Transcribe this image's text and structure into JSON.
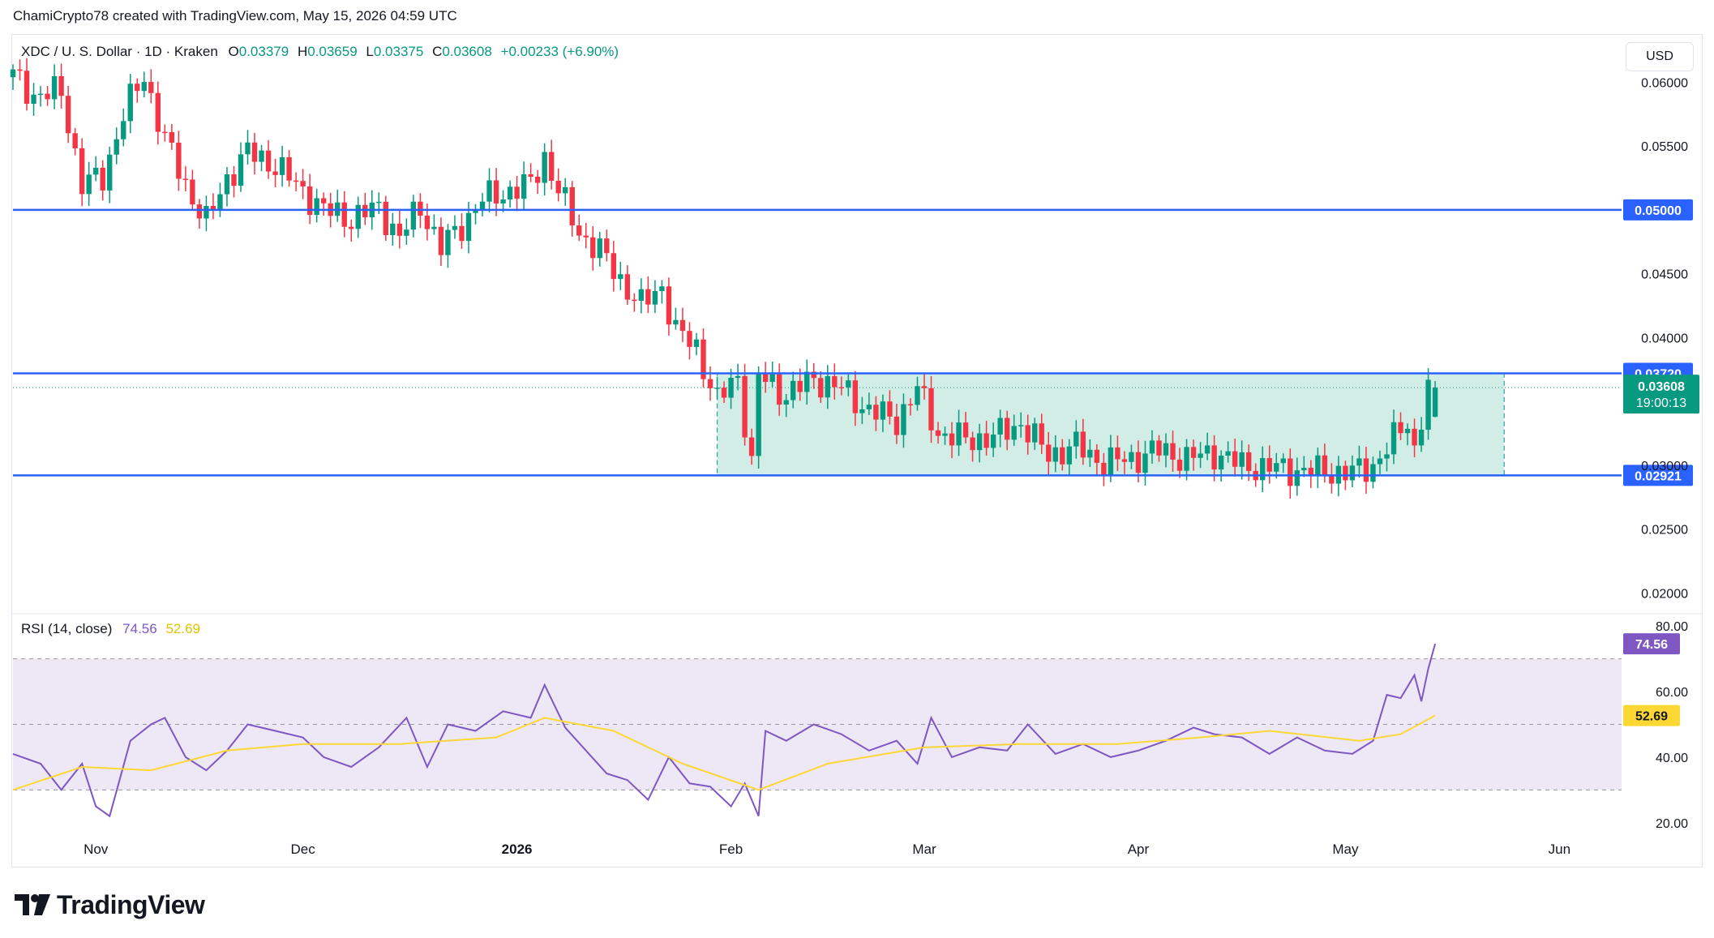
{
  "header": {
    "attribution": "ChamiCrypto78 created with TradingView.com, May 15, 2026 04:59 UTC"
  },
  "legend": {
    "symbol": "XDC / U. S. Dollar · 1D · Kraken",
    "o_label": "O",
    "o_value": "0.03379",
    "h_label": "H",
    "h_value": "0.03659",
    "l_label": "L",
    "l_value": "0.03375",
    "c_label": "C",
    "c_value": "0.03608",
    "change": "+0.00233 (+6.90%)"
  },
  "currency_button": "USD",
  "rsi_legend": {
    "label": "RSI (14, close)",
    "rsi_value": "74.56",
    "ma_value": "52.69"
  },
  "brand": {
    "name": "TradingView"
  },
  "colors": {
    "up": "#089981",
    "down": "#f23645",
    "level_line": "#2962ff",
    "range_fill": "#d2ede6",
    "rsi_line": "#7e57c2",
    "rsi_ma": "#fdd835",
    "rsi_band": "#ede7f6"
  },
  "chart_data": [
    {
      "type": "candlestick",
      "title": "XDC / U. S. Dollar · 1D · Kraken",
      "x_range": [
        "2025-10-20",
        "2026-06-10"
      ],
      "ylim": [
        0.0185,
        0.0625
      ],
      "y_ticks": [
        "0.06000",
        "0.05500",
        "0.04500",
        "0.04000",
        "0.03000",
        "0.02500",
        "0.02000"
      ],
      "x_ticks": [
        {
          "date": "2025-11-01",
          "label": "Nov"
        },
        {
          "date": "2025-12-01",
          "label": "Dec"
        },
        {
          "date": "2026-01-01",
          "label": "2026"
        },
        {
          "date": "2026-02-01",
          "label": "Feb"
        },
        {
          "date": "2026-03-01",
          "label": "Mar"
        },
        {
          "date": "2026-04-01",
          "label": "Apr"
        },
        {
          "date": "2026-05-01",
          "label": "May"
        },
        {
          "date": "2026-06-01",
          "label": "Jun"
        }
      ],
      "horizontal_levels": [
        {
          "value": 0.05,
          "label": "0.05000"
        },
        {
          "value": 0.0372,
          "label": "0.03720"
        },
        {
          "value": 0.02921,
          "label": "0.02921"
        }
      ],
      "range_box": {
        "start": "2026-01-30",
        "end": "2026-05-24",
        "top": 0.0372,
        "bottom": 0.02921
      },
      "last_price": {
        "value": 0.03608,
        "label": "0.03608",
        "countdown": "19:00:13"
      },
      "closes": [
        {
          "date": "2025-10-20",
          "close": 0.061
        },
        {
          "date": "2025-10-24",
          "close": 0.059
        },
        {
          "date": "2025-10-28",
          "close": 0.0592
        },
        {
          "date": "2025-10-31",
          "close": 0.052
        },
        {
          "date": "2025-11-03",
          "close": 0.0525
        },
        {
          "date": "2025-11-06",
          "close": 0.0575
        },
        {
          "date": "2025-11-09",
          "close": 0.0605
        },
        {
          "date": "2025-11-12",
          "close": 0.0555
        },
        {
          "date": "2025-11-15",
          "close": 0.052
        },
        {
          "date": "2025-11-18",
          "close": 0.049
        },
        {
          "date": "2025-11-21",
          "close": 0.0525
        },
        {
          "date": "2025-11-24",
          "close": 0.0545
        },
        {
          "date": "2025-11-28",
          "close": 0.0535
        },
        {
          "date": "2025-12-02",
          "close": 0.0515
        },
        {
          "date": "2025-12-05",
          "close": 0.05
        },
        {
          "date": "2025-12-09",
          "close": 0.0493
        },
        {
          "date": "2025-12-13",
          "close": 0.0502
        },
        {
          "date": "2025-12-16",
          "close": 0.0478
        },
        {
          "date": "2025-12-19",
          "close": 0.0503
        },
        {
          "date": "2025-12-22",
          "close": 0.047
        },
        {
          "date": "2025-12-25",
          "close": 0.0488
        },
        {
          "date": "2025-12-28",
          "close": 0.0508
        },
        {
          "date": "2026-01-01",
          "close": 0.0515
        },
        {
          "date": "2026-01-04",
          "close": 0.052
        },
        {
          "date": "2026-01-06",
          "close": 0.0542
        },
        {
          "date": "2026-01-08",
          "close": 0.0515
        },
        {
          "date": "2026-01-11",
          "close": 0.0482
        },
        {
          "date": "2026-01-14",
          "close": 0.0468
        },
        {
          "date": "2026-01-17",
          "close": 0.0445
        },
        {
          "date": "2026-01-20",
          "close": 0.0425
        },
        {
          "date": "2026-01-23",
          "close": 0.044
        },
        {
          "date": "2026-01-25",
          "close": 0.0405
        },
        {
          "date": "2026-01-28",
          "close": 0.0392
        },
        {
          "date": "2026-01-31",
          "close": 0.035
        },
        {
          "date": "2026-02-03",
          "close": 0.037
        },
        {
          "date": "2026-02-05",
          "close": 0.03
        },
        {
          "date": "2026-02-06",
          "close": 0.037
        },
        {
          "date": "2026-02-10",
          "close": 0.0355
        },
        {
          "date": "2026-02-14",
          "close": 0.0368
        },
        {
          "date": "2026-02-18",
          "close": 0.036
        },
        {
          "date": "2026-02-22",
          "close": 0.0343
        },
        {
          "date": "2026-02-26",
          "close": 0.0335
        },
        {
          "date": "2026-03-01",
          "close": 0.036
        },
        {
          "date": "2026-03-04",
          "close": 0.0325
        },
        {
          "date": "2026-03-08",
          "close": 0.032
        },
        {
          "date": "2026-03-12",
          "close": 0.0322
        },
        {
          "date": "2026-03-16",
          "close": 0.0333
        },
        {
          "date": "2026-03-20",
          "close": 0.0308
        },
        {
          "date": "2026-03-24",
          "close": 0.0315
        },
        {
          "date": "2026-03-28",
          "close": 0.0302
        },
        {
          "date": "2026-04-01",
          "close": 0.0305
        },
        {
          "date": "2026-04-05",
          "close": 0.0312
        },
        {
          "date": "2026-04-09",
          "close": 0.0305
        },
        {
          "date": "2026-04-13",
          "close": 0.031
        },
        {
          "date": "2026-04-17",
          "close": 0.03
        },
        {
          "date": "2026-04-21",
          "close": 0.0298
        },
        {
          "date": "2026-04-25",
          "close": 0.0296
        },
        {
          "date": "2026-04-29",
          "close": 0.0295
        },
        {
          "date": "2026-05-03",
          "close": 0.0294
        },
        {
          "date": "2026-05-06",
          "close": 0.03
        },
        {
          "date": "2026-05-09",
          "close": 0.032
        },
        {
          "date": "2026-05-11",
          "close": 0.0335
        },
        {
          "date": "2026-05-12",
          "close": 0.0312
        },
        {
          "date": "2026-05-13",
          "close": 0.0337
        },
        {
          "date": "2026-05-14",
          "close": 0.03608
        }
      ],
      "last_candle": {
        "date": "2026-05-14",
        "open": 0.03379,
        "high": 0.03659,
        "low": 0.03375,
        "close": 0.03608
      }
    },
    {
      "type": "line",
      "title": "RSI (14, close)",
      "ylim": [
        15,
        83
      ],
      "y_ticks": [
        "80.00",
        "60.00",
        "40.00",
        "20.00"
      ],
      "bands": {
        "upper": 70,
        "middle": 50,
        "lower": 30
      },
      "last_values": {
        "rsi": "74.56",
        "ma": "52.69"
      },
      "series": [
        {
          "name": "RSI",
          "points": [
            {
              "date": "2025-10-20",
              "value": 41
            },
            {
              "date": "2025-10-24",
              "value": 38
            },
            {
              "date": "2025-10-27",
              "value": 30
            },
            {
              "date": "2025-10-30",
              "value": 38
            },
            {
              "date": "2025-11-01",
              "value": 25
            },
            {
              "date": "2025-11-03",
              "value": 22
            },
            {
              "date": "2025-11-06",
              "value": 45
            },
            {
              "date": "2025-11-09",
              "value": 50
            },
            {
              "date": "2025-11-11",
              "value": 52
            },
            {
              "date": "2025-11-14",
              "value": 40
            },
            {
              "date": "2025-11-17",
              "value": 36
            },
            {
              "date": "2025-11-20",
              "value": 42
            },
            {
              "date": "2025-11-23",
              "value": 50
            },
            {
              "date": "2025-11-27",
              "value": 48
            },
            {
              "date": "2025-12-01",
              "value": 46
            },
            {
              "date": "2025-12-04",
              "value": 40
            },
            {
              "date": "2025-12-08",
              "value": 37
            },
            {
              "date": "2025-12-12",
              "value": 43
            },
            {
              "date": "2025-12-16",
              "value": 52
            },
            {
              "date": "2025-12-19",
              "value": 37
            },
            {
              "date": "2025-12-22",
              "value": 50
            },
            {
              "date": "2025-12-26",
              "value": 48
            },
            {
              "date": "2025-12-30",
              "value": 54
            },
            {
              "date": "2026-01-03",
              "value": 52
            },
            {
              "date": "2026-01-05",
              "value": 62
            },
            {
              "date": "2026-01-08",
              "value": 49
            },
            {
              "date": "2026-01-11",
              "value": 42
            },
            {
              "date": "2026-01-14",
              "value": 35
            },
            {
              "date": "2026-01-17",
              "value": 33
            },
            {
              "date": "2026-01-20",
              "value": 27
            },
            {
              "date": "2026-01-23",
              "value": 40
            },
            {
              "date": "2026-01-26",
              "value": 32
            },
            {
              "date": "2026-01-29",
              "value": 31
            },
            {
              "date": "2026-02-01",
              "value": 25
            },
            {
              "date": "2026-02-03",
              "value": 32
            },
            {
              "date": "2026-02-05",
              "value": 22
            },
            {
              "date": "2026-02-06",
              "value": 48
            },
            {
              "date": "2026-02-09",
              "value": 45
            },
            {
              "date": "2026-02-13",
              "value": 50
            },
            {
              "date": "2026-02-17",
              "value": 47
            },
            {
              "date": "2026-02-21",
              "value": 42
            },
            {
              "date": "2026-02-25",
              "value": 45
            },
            {
              "date": "2026-02-28",
              "value": 38
            },
            {
              "date": "2026-03-02",
              "value": 52
            },
            {
              "date": "2026-03-05",
              "value": 40
            },
            {
              "date": "2026-03-09",
              "value": 43
            },
            {
              "date": "2026-03-13",
              "value": 42
            },
            {
              "date": "2026-03-16",
              "value": 50
            },
            {
              "date": "2026-03-20",
              "value": 41
            },
            {
              "date": "2026-03-24",
              "value": 44
            },
            {
              "date": "2026-03-28",
              "value": 40
            },
            {
              "date": "2026-04-01",
              "value": 42
            },
            {
              "date": "2026-04-05",
              "value": 45
            },
            {
              "date": "2026-04-09",
              "value": 49
            },
            {
              "date": "2026-04-12",
              "value": 47
            },
            {
              "date": "2026-04-16",
              "value": 46
            },
            {
              "date": "2026-04-20",
              "value": 41
            },
            {
              "date": "2026-04-24",
              "value": 46
            },
            {
              "date": "2026-04-28",
              "value": 42
            },
            {
              "date": "2026-05-02",
              "value": 41
            },
            {
              "date": "2026-05-05",
              "value": 45
            },
            {
              "date": "2026-05-07",
              "value": 59
            },
            {
              "date": "2026-05-09",
              "value": 58
            },
            {
              "date": "2026-05-11",
              "value": 65
            },
            {
              "date": "2026-05-12",
              "value": 57
            },
            {
              "date": "2026-05-13",
              "value": 67
            },
            {
              "date": "2026-05-14",
              "value": 74.56
            }
          ]
        },
        {
          "name": "RSI-based MA",
          "points": [
            {
              "date": "2025-10-20",
              "value": 30
            },
            {
              "date": "2025-10-30",
              "value": 37
            },
            {
              "date": "2025-11-09",
              "value": 36
            },
            {
              "date": "2025-11-20",
              "value": 42
            },
            {
              "date": "2025-12-01",
              "value": 44
            },
            {
              "date": "2025-12-15",
              "value": 44
            },
            {
              "date": "2025-12-29",
              "value": 46
            },
            {
              "date": "2026-01-05",
              "value": 52
            },
            {
              "date": "2026-01-15",
              "value": 48
            },
            {
              "date": "2026-01-25",
              "value": 38
            },
            {
              "date": "2026-02-05",
              "value": 30
            },
            {
              "date": "2026-02-15",
              "value": 38
            },
            {
              "date": "2026-03-01",
              "value": 43
            },
            {
              "date": "2026-03-15",
              "value": 44
            },
            {
              "date": "2026-03-29",
              "value": 44
            },
            {
              "date": "2026-04-10",
              "value": 46
            },
            {
              "date": "2026-04-20",
              "value": 48
            },
            {
              "date": "2026-05-03",
              "value": 45
            },
            {
              "date": "2026-05-09",
              "value": 47
            },
            {
              "date": "2026-05-14",
              "value": 52.69
            }
          ]
        }
      ]
    }
  ]
}
